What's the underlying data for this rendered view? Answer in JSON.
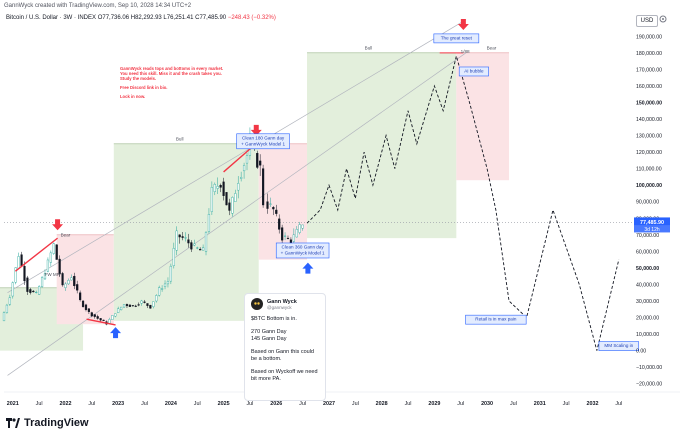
{
  "header": {
    "byline": "GannWyck created with TradingView.com, Sep 10, 2028 14:34 UTC+2",
    "symbol": "Bitcoin / U.S. Dollar · 3W · INDEX",
    "ohlc": "O77,736.06  H82,292.93  L76,251.41  C77,485.90",
    "change": "−248.43 (−0.32%)"
  },
  "currency": "USD",
  "price_tag": {
    "value": "77,485.90",
    "countdown": "3d 12h"
  },
  "footer": {
    "brand": "TradingView"
  },
  "tweet": {
    "name": "Gann Wyck",
    "handle": "@gannwyck",
    "lines": [
      "$BTC Bottom is in.",
      "270 Gann Day",
      "145 Gann Day",
      "Based on Gann this could be a bottom.",
      "Based on Wyckoff we need bit more PA."
    ]
  },
  "red_note": {
    "lines": [
      "GannWyck reads tops and bottoms in every market.",
      "You need this skill. Miss it and the crash takes you.",
      "Study the models.",
      "",
      "Free Discord link in bio.",
      "",
      "Lock in now."
    ]
  },
  "colors": {
    "up": "#26a69a",
    "down": "#ef5350",
    "bull_zone": "#e3efdc",
    "bear_zone": "#fbe3e5",
    "accent": "#2962ff"
  },
  "chart_data": {
    "type": "candlestick",
    "title": "Bitcoin / U.S. Dollar",
    "xlabel": "",
    "ylabel": "",
    "x_ticks": [
      "2021",
      "Jul",
      "2022",
      "Jul",
      "2023",
      "Jul",
      "2024",
      "Jul",
      "2025",
      "Jul",
      "2026",
      "Jul",
      "2027",
      "Jul",
      "2028",
      "Jul",
      "2029",
      "Jul",
      "2030",
      "Jul",
      "2031",
      "Jul",
      "2032",
      "Jul"
    ],
    "ylim": [
      -25000,
      195000
    ],
    "y_ticks": [
      -20000,
      -10000,
      0,
      10000,
      20000,
      30000,
      40000,
      50000,
      60000,
      70000,
      80000,
      90000,
      100000,
      110000,
      120000,
      130000,
      140000,
      150000,
      160000,
      170000,
      180000,
      190000
    ],
    "y_tick_labels": [
      "−20,000.00",
      "−10,000.00",
      "0.00",
      "10,000.00",
      "20,000.00",
      "30,000.00",
      "40,000.00",
      "50,000.00",
      "60,000.00",
      "70,000.00",
      "80,000.00",
      "90,000.00",
      "100,000.00",
      "110,000.00",
      "120,000.00",
      "130,000.00",
      "140,000.00",
      "150,000.00",
      "160,000.00",
      "170,000.00",
      "180,000.00",
      "190,000.00"
    ],
    "bold_ticks": [
      50000,
      100000,
      150000
    ],
    "price_closes": [
      [
        "2020-11",
        18000
      ],
      [
        "2021-01",
        33000
      ],
      [
        "2021-03",
        58000
      ],
      [
        "2021-05",
        37000
      ],
      [
        "2021-07",
        34000
      ],
      [
        "2021-09",
        48000
      ],
      [
        "2021-11",
        64000
      ],
      [
        "2022-01",
        38000
      ],
      [
        "2022-03",
        45000
      ],
      [
        "2022-05",
        30000
      ],
      [
        "2022-07",
        23000
      ],
      [
        "2022-09",
        19500
      ],
      [
        "2022-11",
        16500
      ],
      [
        "2023-01",
        23000
      ],
      [
        "2023-03",
        28000
      ],
      [
        "2023-05",
        27000
      ],
      [
        "2023-07",
        29500
      ],
      [
        "2023-09",
        26500
      ],
      [
        "2023-11",
        37000
      ],
      [
        "2024-01",
        42000
      ],
      [
        "2024-03",
        70000
      ],
      [
        "2024-05",
        67000
      ],
      [
        "2024-07",
        62000
      ],
      [
        "2024-09",
        60000
      ],
      [
        "2024-11",
        96000
      ],
      [
        "2025-01",
        102000
      ],
      [
        "2025-03",
        83000
      ],
      [
        "2025-05",
        104000
      ],
      [
        "2025-07",
        118000
      ],
      [
        "2025-08",
        124000
      ],
      [
        "2025-10",
        110000
      ],
      [
        "2025-11",
        90000
      ],
      [
        "2026-01",
        85000
      ],
      [
        "2026-03",
        69000
      ],
      [
        "2026-05",
        66000
      ],
      [
        "2026-07",
        74000
      ],
      [
        "2026-08",
        77485.9
      ]
    ],
    "projection": [
      [
        "2026-08",
        77000
      ],
      [
        "2026-11",
        85000
      ],
      [
        "2027-01",
        100000
      ],
      [
        "2027-03",
        85000
      ],
      [
        "2027-05",
        110000
      ],
      [
        "2027-07",
        92000
      ],
      [
        "2027-09",
        120000
      ],
      [
        "2027-11",
        100000
      ],
      [
        "2028-02",
        130000
      ],
      [
        "2028-04",
        110000
      ],
      [
        "2028-07",
        145000
      ],
      [
        "2028-09",
        125000
      ],
      [
        "2029-01",
        160000
      ],
      [
        "2029-03",
        145000
      ],
      [
        "2029-06",
        178000
      ],
      [
        "2029-09",
        150000
      ],
      [
        "2029-11",
        130000
      ],
      [
        "2030-01",
        110000
      ],
      [
        "2030-03",
        85000
      ],
      [
        "2030-06",
        30000
      ],
      [
        "2030-10",
        20000
      ],
      [
        "2031-04",
        85000
      ],
      [
        "2031-10",
        40000
      ],
      [
        "2032-02",
        0
      ],
      [
        "2032-07",
        55000
      ]
    ],
    "zones": [
      {
        "label": "",
        "type": "bull",
        "x0": "2020-10",
        "x1": "2022-05",
        "y0": 0,
        "y1": 38000
      },
      {
        "label": "Bear",
        "type": "bear",
        "x0": "2021-11",
        "x1": "2022-12",
        "y0": 16000,
        "y1": 70000
      },
      {
        "label": "Bull",
        "type": "bull",
        "x0": "2022-12",
        "x1": "2025-09",
        "y0": 18000,
        "y1": 125000
      },
      {
        "label": "",
        "type": "bear",
        "x0": "2025-09",
        "x1": "2026-08",
        "y0": 55000,
        "y1": 125000
      },
      {
        "label": "Bull",
        "type": "bull",
        "x0": "2026-08",
        "x1": "2029-06",
        "y0": 68000,
        "y1": 180000
      },
      {
        "label": "Bear",
        "type": "bear",
        "x0": "2029-06",
        "x1": "2030-06",
        "y0": 103000,
        "y1": 180000
      }
    ],
    "annotations": [
      {
        "text": "Clean 180 Gann day\n+ GannWyck Model 1",
        "x": "2025-10",
        "y": 122000,
        "style": "blue"
      },
      {
        "text": "Clean 360 Gann day\n+ GannWyck Model 1",
        "x": "2026-07",
        "y": 56000,
        "style": "blue"
      },
      {
        "text": "The great reset",
        "x": "2029-06",
        "y": 186000,
        "style": "blue"
      },
      {
        "text": "AI bubble",
        "x": "2029-10",
        "y": 166000,
        "style": "blue"
      },
      {
        "text": "Retail is in max pain",
        "x": "2030-03",
        "y": 16000,
        "style": "blue"
      },
      {
        "text": "MM Scaling in",
        "x": "2032-07",
        "y": 0,
        "style": "blue"
      },
      {
        "text": "Bear",
        "x": "2022-01",
        "y": 69000,
        "style": "plain"
      },
      {
        "text": "Bull",
        "x": "2024-03",
        "y": 127000,
        "style": "plain"
      },
      {
        "text": "Bull",
        "x": "2027-10",
        "y": 182000,
        "style": "plain"
      },
      {
        "text": "Bear",
        "x": "2030-02",
        "y": 182000,
        "style": "plain"
      },
      {
        "text": "1/88",
        "x": "2029-08",
        "y": 180000,
        "style": "plain"
      },
      {
        "text": "FW MR",
        "x": "2021-10",
        "y": 45000,
        "style": "plain"
      }
    ],
    "current_price": 77485.9
  }
}
